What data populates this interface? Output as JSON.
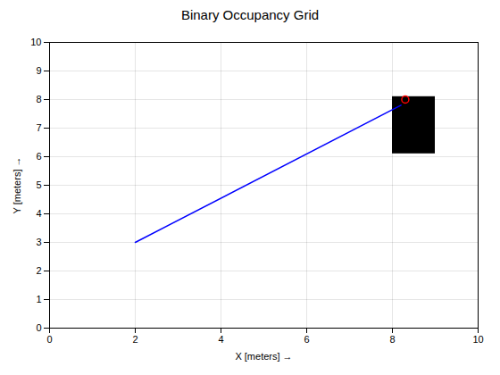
{
  "chart_data": {
    "type": "line",
    "title": "Binary Occupancy Grid",
    "xlabel": "X [meters]",
    "ylabel": "Y [meters]",
    "xlim": [
      0,
      10
    ],
    "ylim": [
      0,
      10
    ],
    "xticks": [
      0,
      2,
      4,
      6,
      8,
      10
    ],
    "yticks": [
      0,
      1,
      2,
      3,
      4,
      5,
      6,
      7,
      8,
      9,
      10
    ],
    "grid": true,
    "series": [
      {
        "type": "rect",
        "color": "#000000",
        "rect": {
          "x": 8.0,
          "y": 6.1,
          "width": 1.0,
          "height": 2.0
        }
      },
      {
        "type": "line",
        "color": "#0000ff",
        "x": [
          2.0,
          8.2
        ],
        "values": [
          3.0,
          7.8
        ]
      },
      {
        "type": "scatter",
        "color": "#ff0000",
        "marker": "circle",
        "x": [
          8.3
        ],
        "values": [
          8.0
        ]
      }
    ]
  }
}
